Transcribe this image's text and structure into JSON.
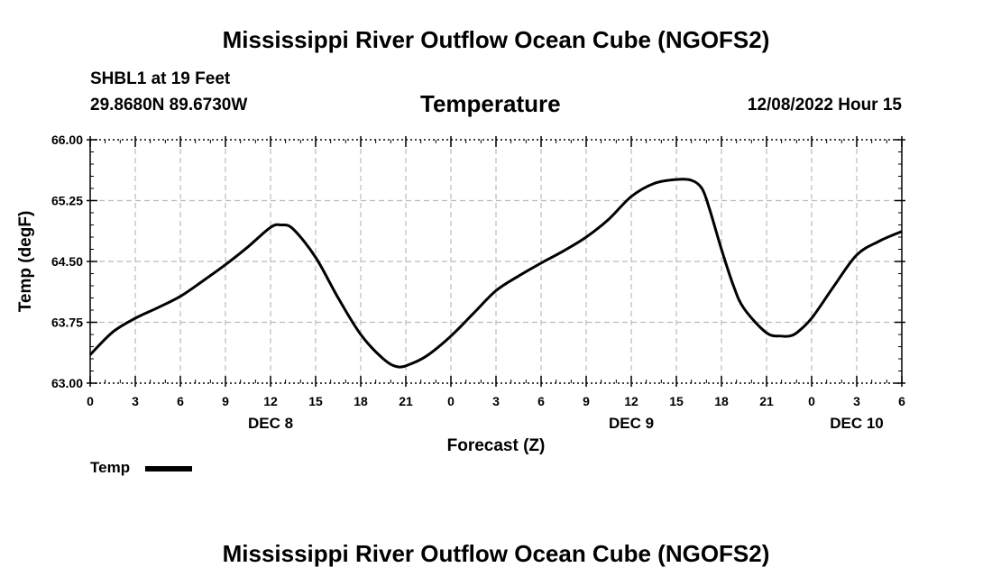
{
  "header": {
    "title": "Mississippi River Outflow Ocean Cube (NGOFS2)",
    "station": "SHBL1 at 19 Feet",
    "coordinates": "29.8680N  89.6730W",
    "chart_title": "Temperature",
    "forecast_time": "12/08/2022 Hour 15"
  },
  "footer": {
    "title": "Mississippi River Outflow Ocean Cube (NGOFS2)"
  },
  "colors": {
    "line": "#000000",
    "grid": "#bbbbbb",
    "background": "#ffffff"
  },
  "chart_data": {
    "type": "line",
    "title": "Temperature",
    "xlabel": "Forecast (Z)",
    "ylabel": "Temp (degF)",
    "xlim": [
      0,
      54
    ],
    "ylim": [
      63.0,
      66.0
    ],
    "y_ticks": [
      "63.00",
      "63.75",
      "64.50",
      "65.25",
      "66.00"
    ],
    "x_tick_labels": [
      "0",
      "3",
      "6",
      "9",
      "12",
      "15",
      "18",
      "21",
      "0",
      "3",
      "6",
      "9",
      "12",
      "15",
      "18",
      "21",
      "0",
      "3",
      "6"
    ],
    "date_labels": [
      {
        "label": "DEC 8",
        "hour": 12
      },
      {
        "label": "DEC 9",
        "hour": 36
      },
      {
        "label": "DEC 10",
        "hour": 51
      }
    ],
    "grid": true,
    "legend": {
      "position": "bottom-left",
      "entries": [
        "Temp"
      ]
    },
    "series": [
      {
        "name": "Temp",
        "x": [
          0,
          1.5,
          3,
          4.5,
          6,
          7.5,
          9,
          10.5,
          12,
          12.7,
          13.5,
          15,
          16.5,
          18,
          19.5,
          20.5,
          21.5,
          22.5,
          24,
          25.5,
          27,
          28.5,
          30,
          31.5,
          33,
          34.5,
          36,
          37.5,
          39,
          40,
          40.7,
          41.2,
          42,
          42.8,
          43.5,
          45,
          46,
          46.5,
          47,
          48,
          49.5,
          51,
          52.5,
          54
        ],
        "y": [
          63.35,
          63.63,
          63.8,
          63.93,
          64.07,
          64.26,
          64.46,
          64.68,
          64.92,
          64.95,
          64.9,
          64.55,
          64.05,
          63.6,
          63.3,
          63.2,
          63.25,
          63.35,
          63.58,
          63.86,
          64.14,
          64.32,
          64.48,
          64.63,
          64.8,
          65.02,
          65.3,
          65.46,
          65.51,
          65.5,
          65.4,
          65.15,
          64.65,
          64.2,
          63.92,
          63.62,
          63.58,
          63.58,
          63.62,
          63.8,
          64.2,
          64.58,
          64.75,
          64.87
        ]
      }
    ]
  },
  "legend": {
    "label": "Temp"
  }
}
